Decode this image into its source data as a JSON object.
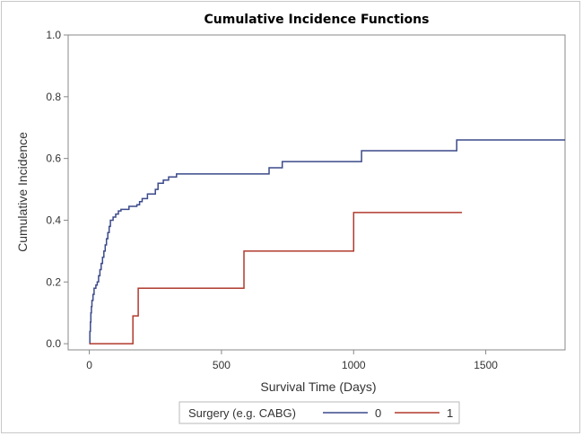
{
  "chart_data": {
    "type": "line",
    "step": true,
    "title": "Cumulative Incidence Functions",
    "xlabel": "Survival Time (Days)",
    "ylabel": "Cumulative Incidence",
    "xlim": [
      -80,
      1800
    ],
    "ylim": [
      -0.02,
      1.0
    ],
    "xticks": [
      0,
      500,
      1000,
      1500
    ],
    "yticks": [
      0.0,
      0.2,
      0.4,
      0.6,
      0.8,
      1.0
    ],
    "ytick_labels": [
      "0.0",
      "0.2",
      "0.4",
      "0.6",
      "0.8",
      "1.0"
    ],
    "grid": false,
    "legend": {
      "title": "Surgery (e.g. CABG)",
      "position": "bottom"
    },
    "series": [
      {
        "name": "0",
        "color": "#3b4a8a",
        "points": [
          [
            0,
            0.0
          ],
          [
            2,
            0.04
          ],
          [
            4,
            0.07
          ],
          [
            6,
            0.1
          ],
          [
            8,
            0.12
          ],
          [
            10,
            0.14
          ],
          [
            14,
            0.16
          ],
          [
            18,
            0.18
          ],
          [
            25,
            0.19
          ],
          [
            30,
            0.2
          ],
          [
            35,
            0.22
          ],
          [
            40,
            0.24
          ],
          [
            45,
            0.26
          ],
          [
            50,
            0.28
          ],
          [
            55,
            0.3
          ],
          [
            60,
            0.32
          ],
          [
            65,
            0.34
          ],
          [
            70,
            0.36
          ],
          [
            75,
            0.38
          ],
          [
            80,
            0.4
          ],
          [
            90,
            0.41
          ],
          [
            100,
            0.42
          ],
          [
            110,
            0.43
          ],
          [
            120,
            0.435
          ],
          [
            150,
            0.445
          ],
          [
            180,
            0.45
          ],
          [
            190,
            0.46
          ],
          [
            200,
            0.47
          ],
          [
            220,
            0.485
          ],
          [
            250,
            0.5
          ],
          [
            260,
            0.52
          ],
          [
            280,
            0.53
          ],
          [
            300,
            0.54
          ],
          [
            330,
            0.55
          ],
          [
            680,
            0.57
          ],
          [
            730,
            0.59
          ],
          [
            1030,
            0.625
          ],
          [
            1390,
            0.66
          ],
          [
            1800,
            0.66
          ]
        ]
      },
      {
        "name": "1",
        "color": "#b03a2e",
        "points": [
          [
            0,
            0.0
          ],
          [
            165,
            0.09
          ],
          [
            185,
            0.18
          ],
          [
            585,
            0.3
          ],
          [
            1000,
            0.425
          ],
          [
            1410,
            0.425
          ]
        ]
      }
    ]
  }
}
